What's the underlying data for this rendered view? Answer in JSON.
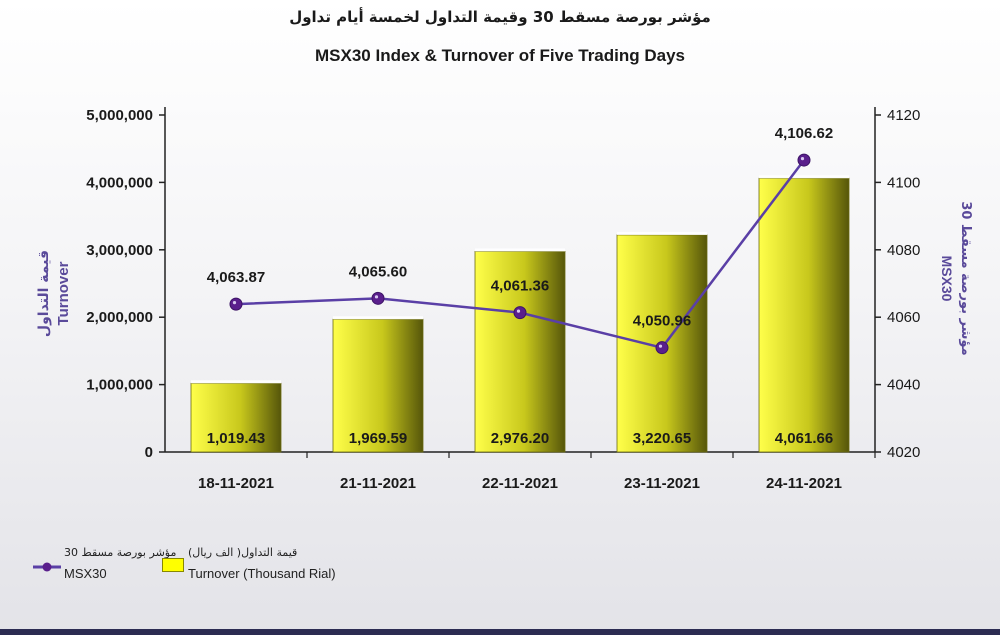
{
  "chart_data": {
    "type": "bar",
    "title": "MSX30 Index & Turnover of Five Trading Days",
    "title_ar": "مؤشر بورصة مسقط 30 وقيمة التداول لخمسة أيام تداول",
    "categories": [
      "18-11-2021",
      "21-11-2021",
      "22-11-2021",
      "23-11-2021",
      "24-11-2021"
    ],
    "series": [
      {
        "name": "Turnover (Thousand Rial)",
        "name_ar": "قيمة التداول( الف ريال)",
        "type": "bar",
        "axis": "left",
        "values": [
          1019.43,
          1969.59,
          2976.2,
          3220.65,
          4061.66
        ],
        "labels": [
          "1,019.43",
          "1,969.59",
          "2,976.20",
          "3,220.65",
          "4,061.66"
        ]
      },
      {
        "name": "MSX30",
        "name_ar": "مؤشر بورصة مسقط 30",
        "type": "line",
        "axis": "right",
        "values": [
          4063.87,
          4065.6,
          4061.36,
          4050.96,
          4106.62
        ],
        "labels": [
          "4,063.87",
          "4,065.60",
          "4,061.36",
          "4,050.96",
          "4,106.62"
        ]
      }
    ],
    "y_left": {
      "label": "Turnover",
      "label_ar": "قيمة التداول",
      "ylim": [
        0,
        5000000
      ],
      "ticks": [
        "0",
        "1,000,000",
        "2,000,000",
        "3,000,000",
        "4,000,000",
        "5,000,000"
      ]
    },
    "y_right": {
      "label": "MSX30",
      "label_ar": "مؤشر بورصة مسقط 30",
      "ylim": [
        4020,
        4120
      ],
      "ticks": [
        "4020",
        "4040",
        "4060",
        "4080",
        "4100",
        "4120"
      ]
    },
    "grid": false,
    "legend_position": "bottom-left",
    "colors": {
      "bar_light": "#ffff4a",
      "bar_dark": "#56560a",
      "line": "#5a3fa6",
      "marker": "#5a1f8c",
      "axis": "#222222",
      "axis_label": "#5a4a9a"
    }
  }
}
